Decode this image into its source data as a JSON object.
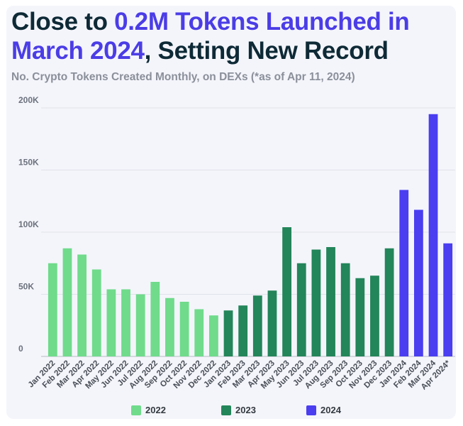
{
  "title": {
    "part1": "Close to ",
    "highlight1": "0.2M Tokens Launched in March 2024",
    "part2": ", Setting New Record"
  },
  "subtitle": "No. Crypto Tokens Created Monthly, on DEXs (*as of Apr 11, 2024)",
  "colors": {
    "2022": "#6fdb8b",
    "2023": "#23855a",
    "2024": "#4a3ef0",
    "title_highlight": "#4b3de6"
  },
  "chart_data": {
    "type": "bar",
    "title": "Close to 0.2M Tokens Launched in March 2024, Setting New Record",
    "subtitle": "No. Crypto Tokens Created Monthly, on DEXs (*as of Apr 11, 2024)",
    "xlabel": "",
    "ylabel": "",
    "ylim": [
      0,
      200000
    ],
    "yticks": [
      0,
      50000,
      100000,
      150000,
      200000
    ],
    "ytick_labels": [
      "0",
      "50K",
      "100K",
      "150K",
      "200K"
    ],
    "grid": true,
    "legend": "bottom",
    "categories": [
      "Jan 2022",
      "Feb 2022",
      "Mar 2022",
      "Apr 2022",
      "May 2022",
      "Jun 2022",
      "Jul 2022",
      "Aug 2022",
      "Sep 2022",
      "Oct 2022",
      "Nov 2022",
      "Dec 2022",
      "Jan 2023",
      "Feb 2023",
      "Mar 2023",
      "Apr 2023",
      "May 2023",
      "Jun 2023",
      "Jul 2023",
      "Aug 2023",
      "Sep 2023",
      "Oct 2023",
      "Nov 2023",
      "Dec 2023",
      "Jan 2024",
      "Feb 2024",
      "Mar 2024",
      "Apr 2024*"
    ],
    "series": [
      {
        "name": "2022",
        "values": [
          75000,
          87000,
          82000,
          70000,
          54000,
          54000,
          50000,
          60000,
          47000,
          44000,
          38000,
          33000,
          null,
          null,
          null,
          null,
          null,
          null,
          null,
          null,
          null,
          null,
          null,
          null,
          null,
          null,
          null,
          null
        ]
      },
      {
        "name": "2023",
        "values": [
          null,
          null,
          null,
          null,
          null,
          null,
          null,
          null,
          null,
          null,
          null,
          null,
          37000,
          41000,
          49000,
          53000,
          104000,
          75000,
          86000,
          88000,
          75000,
          63000,
          65000,
          87000,
          null,
          null,
          null,
          null
        ]
      },
      {
        "name": "2024",
        "values": [
          null,
          null,
          null,
          null,
          null,
          null,
          null,
          null,
          null,
          null,
          null,
          null,
          null,
          null,
          null,
          null,
          null,
          null,
          null,
          null,
          null,
          null,
          null,
          null,
          134000,
          118000,
          195000,
          91000
        ]
      }
    ]
  },
  "legend": [
    {
      "label": "2022",
      "color": "#6fdb8b"
    },
    {
      "label": "2023",
      "color": "#23855a"
    },
    {
      "label": "2024",
      "color": "#4a3ef0"
    }
  ]
}
